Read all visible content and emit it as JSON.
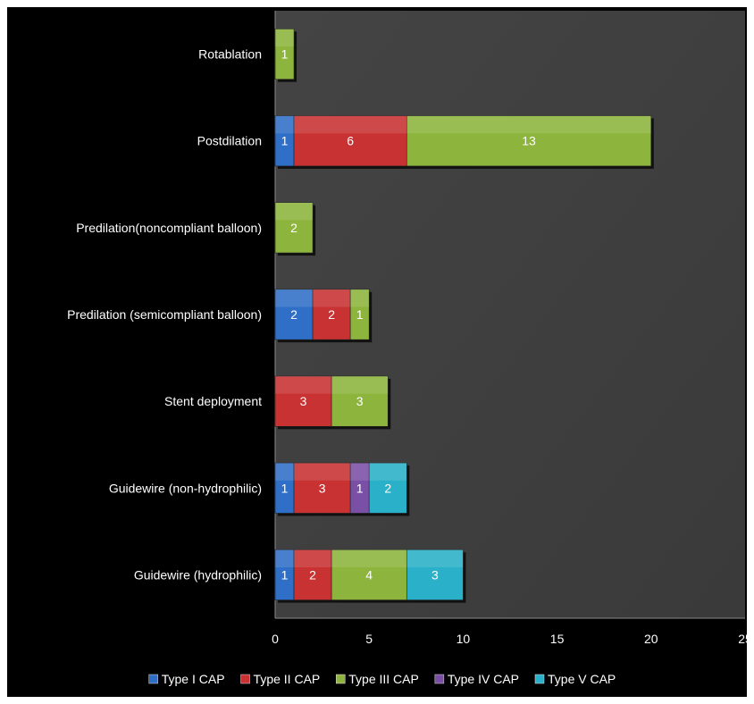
{
  "chart_data": {
    "type": "bar",
    "orientation": "horizontal",
    "stacked": true,
    "categories": [
      "Guidewire (hydrophilic)",
      "Guidewire (non-hydrophilic)",
      "Stent deployment",
      "Predilation (semicompliant balloon)",
      "Predilation(noncompliant balloon)",
      "Postdilation",
      "Rotablation"
    ],
    "series": [
      {
        "name": "Type I CAP",
        "color": "#2f6fc8",
        "values": [
          1,
          1,
          0,
          2,
          0,
          1,
          0
        ]
      },
      {
        "name": "Type II CAP",
        "color": "#c83232",
        "values": [
          2,
          3,
          3,
          2,
          0,
          6,
          0
        ]
      },
      {
        "name": "Type III CAP",
        "color": "#8db43c",
        "values": [
          4,
          0,
          3,
          1,
          2,
          13,
          1
        ]
      },
      {
        "name": "Type IV CAP",
        "color": "#7a4fa6",
        "values": [
          0,
          1,
          0,
          0,
          0,
          0,
          0
        ]
      },
      {
        "name": "Type V CAP",
        "color": "#2ab0c8",
        "values": [
          3,
          2,
          0,
          0,
          0,
          0,
          0
        ]
      }
    ],
    "xlim": [
      0,
      25
    ],
    "xticks": [
      0,
      5,
      10,
      15,
      20,
      25
    ],
    "xlabel": "",
    "ylabel": "",
    "title": "",
    "grid": false,
    "legend_position": "bottom",
    "plot_background": "#404040",
    "background": "#000000"
  }
}
